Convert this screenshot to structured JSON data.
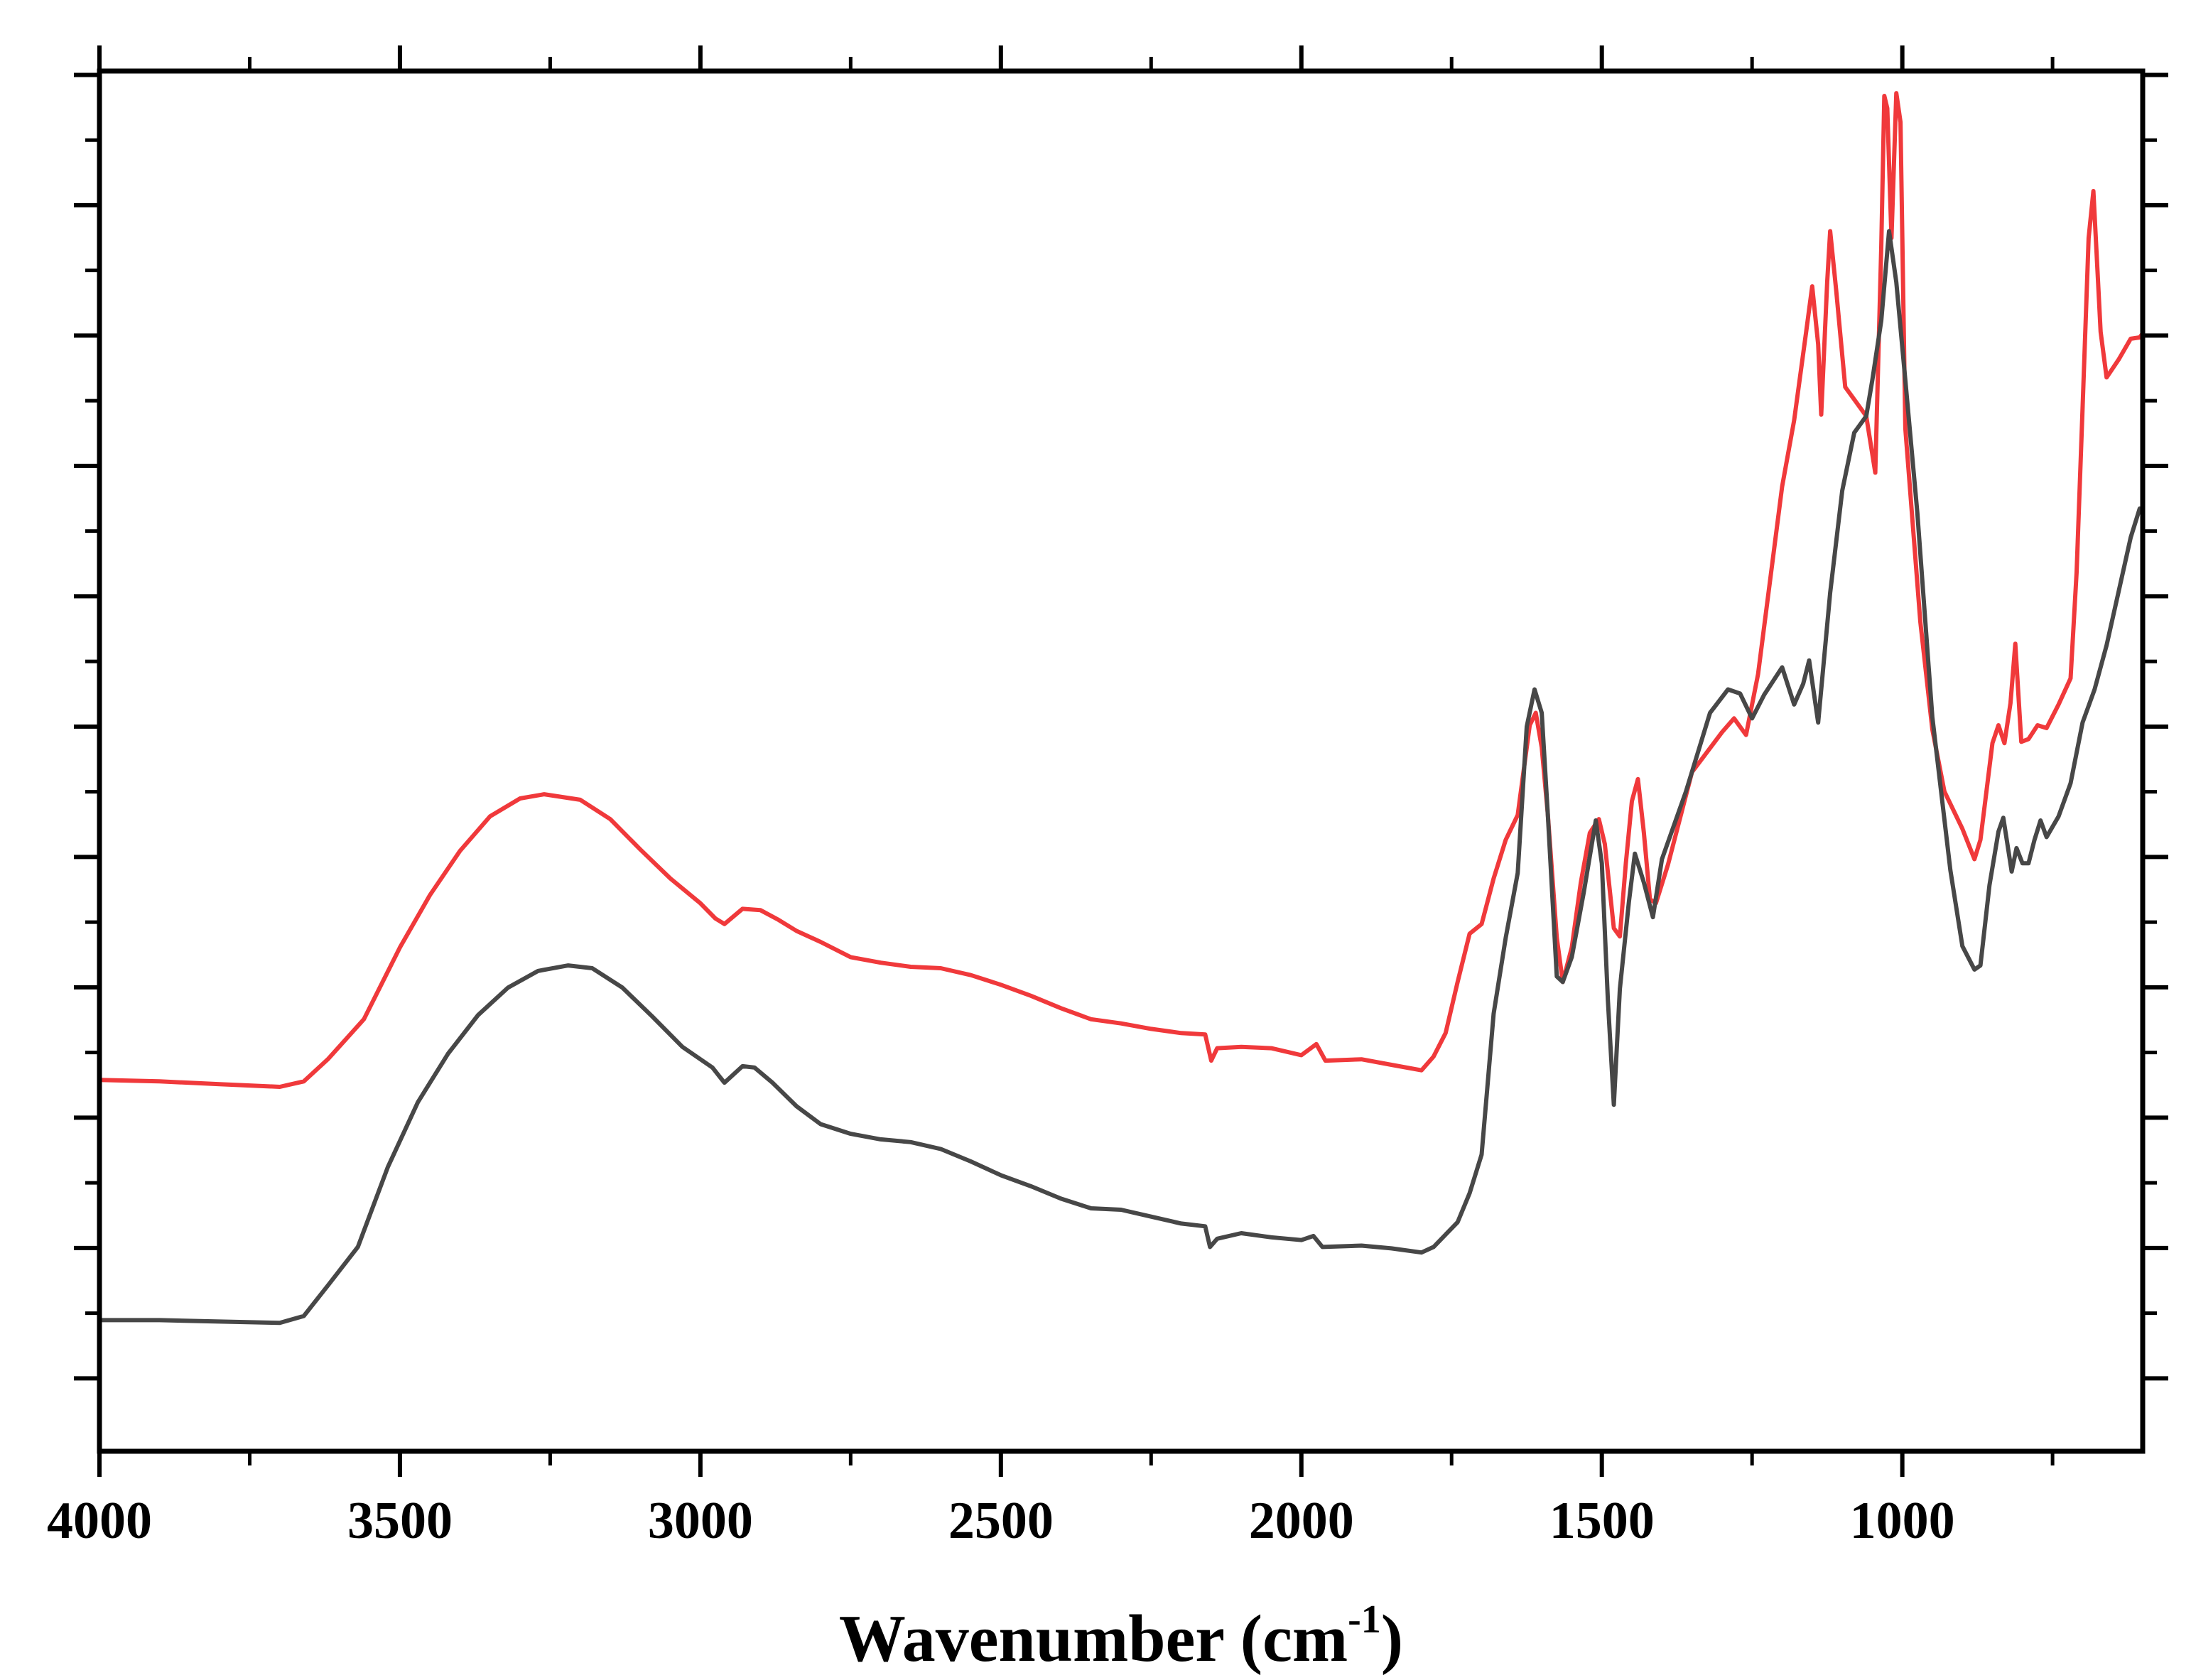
{
  "chart_data": {
    "type": "line",
    "title": "",
    "xlabel": "Wavenumber (cm",
    "xlabel_superscript": "-1",
    "xlabel_suffix": ")",
    "ylabel": "",
    "xlim": [
      4000,
      600
    ],
    "ylim": [
      0,
      100
    ],
    "x_ticks": [
      4000,
      3500,
      3000,
      2500,
      2000,
      1500,
      1000
    ],
    "x_tick_labels": [
      "4000",
      "3500",
      "3000",
      "2500",
      "2000",
      "1500",
      "1000"
    ],
    "y_tick_count": 10,
    "y_tick_labels": [],
    "grid": false,
    "legend": "none",
    "series": [
      {
        "name": "red spectrum",
        "color": "#f0393b",
        "points": [
          [
            4000,
            26.9
          ],
          [
            3900,
            26.8
          ],
          [
            3800,
            26.6
          ],
          [
            3700,
            26.4
          ],
          [
            3660,
            26.8
          ],
          [
            3620,
            28.4
          ],
          [
            3560,
            31.3
          ],
          [
            3500,
            36.5
          ],
          [
            3450,
            40.3
          ],
          [
            3400,
            43.5
          ],
          [
            3350,
            46.0
          ],
          [
            3300,
            47.3
          ],
          [
            3260,
            47.6
          ],
          [
            3200,
            47.2
          ],
          [
            3150,
            45.8
          ],
          [
            3100,
            43.6
          ],
          [
            3050,
            41.5
          ],
          [
            3000,
            39.7
          ],
          [
            2975,
            38.6
          ],
          [
            2960,
            38.2
          ],
          [
            2930,
            39.3
          ],
          [
            2900,
            39.2
          ],
          [
            2870,
            38.5
          ],
          [
            2840,
            37.7
          ],
          [
            2800,
            36.9
          ],
          [
            2750,
            35.8
          ],
          [
            2700,
            35.4
          ],
          [
            2650,
            35.1
          ],
          [
            2600,
            35.0
          ],
          [
            2550,
            34.5
          ],
          [
            2500,
            33.8
          ],
          [
            2450,
            33.0
          ],
          [
            2400,
            32.1
          ],
          [
            2350,
            31.3
          ],
          [
            2300,
            31.0
          ],
          [
            2250,
            30.6
          ],
          [
            2200,
            30.3
          ],
          [
            2160,
            30.2
          ],
          [
            2150,
            28.3
          ],
          [
            2140,
            29.2
          ],
          [
            2100,
            29.3
          ],
          [
            2050,
            29.2
          ],
          [
            2000,
            28.7
          ],
          [
            1975,
            29.5
          ],
          [
            1960,
            28.3
          ],
          [
            1900,
            28.4
          ],
          [
            1850,
            28.0
          ],
          [
            1800,
            27.6
          ],
          [
            1780,
            28.6
          ],
          [
            1760,
            30.3
          ],
          [
            1740,
            34.0
          ],
          [
            1720,
            37.5
          ],
          [
            1700,
            38.2
          ],
          [
            1680,
            41.5
          ],
          [
            1660,
            44.3
          ],
          [
            1640,
            46.1
          ],
          [
            1620,
            52.6
          ],
          [
            1610,
            53.5
          ],
          [
            1600,
            51.0
          ],
          [
            1590,
            46.2
          ],
          [
            1575,
            37.2
          ],
          [
            1565,
            34.0
          ],
          [
            1550,
            36.5
          ],
          [
            1535,
            41.2
          ],
          [
            1520,
            44.8
          ],
          [
            1505,
            45.8
          ],
          [
            1495,
            44.0
          ],
          [
            1480,
            37.9
          ],
          [
            1470,
            37.3
          ],
          [
            1460,
            42.6
          ],
          [
            1450,
            47.1
          ],
          [
            1440,
            48.7
          ],
          [
            1430,
            44.8
          ],
          [
            1420,
            40.0
          ],
          [
            1410,
            39.7
          ],
          [
            1390,
            42.5
          ],
          [
            1350,
            49.2
          ],
          [
            1300,
            52.1
          ],
          [
            1280,
            53.1
          ],
          [
            1260,
            51.9
          ],
          [
            1240,
            56.3
          ],
          [
            1200,
            69.9
          ],
          [
            1180,
            74.7
          ],
          [
            1160,
            81.1
          ],
          [
            1150,
            84.4
          ],
          [
            1140,
            80.2
          ],
          [
            1135,
            75.1
          ],
          [
            1125,
            84.7
          ],
          [
            1120,
            88.4
          ],
          [
            1110,
            84.1
          ],
          [
            1095,
            77.1
          ],
          [
            1080,
            76.2
          ],
          [
            1060,
            75.0
          ],
          [
            1045,
            70.9
          ],
          [
            1035,
            87.2
          ],
          [
            1030,
            98.2
          ],
          [
            1025,
            97.3
          ],
          [
            1018,
            87.9
          ],
          [
            1010,
            98.4
          ],
          [
            1003,
            96.3
          ],
          [
            995,
            74.1
          ],
          [
            970,
            60.1
          ],
          [
            950,
            52.3
          ],
          [
            930,
            47.8
          ],
          [
            900,
            45.1
          ],
          [
            880,
            42.9
          ],
          [
            870,
            44.3
          ],
          [
            850,
            51.3
          ],
          [
            840,
            52.6
          ],
          [
            830,
            51.3
          ],
          [
            820,
            54.2
          ],
          [
            812,
            58.5
          ],
          [
            802,
            51.4
          ],
          [
            790,
            51.6
          ],
          [
            775,
            52.6
          ],
          [
            760,
            52.4
          ],
          [
            740,
            54.1
          ],
          [
            720,
            56.0
          ],
          [
            710,
            63.7
          ],
          [
            700,
            75.6
          ],
          [
            690,
            87.9
          ],
          [
            682,
            91.3
          ],
          [
            670,
            81.1
          ],
          [
            660,
            77.8
          ],
          [
            640,
            79.1
          ],
          [
            620,
            80.6
          ],
          [
            605,
            80.7
          ],
          [
            600,
            81.0
          ]
        ]
      },
      {
        "name": "dark gray spectrum",
        "color": "#474747",
        "points": [
          [
            4000,
            9.5
          ],
          [
            3900,
            9.5
          ],
          [
            3800,
            9.4
          ],
          [
            3700,
            9.3
          ],
          [
            3660,
            9.8
          ],
          [
            3620,
            12.0
          ],
          [
            3570,
            14.8
          ],
          [
            3520,
            20.6
          ],
          [
            3470,
            25.3
          ],
          [
            3420,
            28.8
          ],
          [
            3370,
            31.6
          ],
          [
            3320,
            33.6
          ],
          [
            3270,
            34.8
          ],
          [
            3220,
            35.2
          ],
          [
            3180,
            35.0
          ],
          [
            3130,
            33.6
          ],
          [
            3080,
            31.5
          ],
          [
            3030,
            29.3
          ],
          [
            2980,
            27.8
          ],
          [
            2960,
            26.7
          ],
          [
            2930,
            27.9
          ],
          [
            2910,
            27.8
          ],
          [
            2880,
            26.7
          ],
          [
            2840,
            25.0
          ],
          [
            2800,
            23.7
          ],
          [
            2750,
            23.0
          ],
          [
            2700,
            22.6
          ],
          [
            2650,
            22.4
          ],
          [
            2600,
            21.9
          ],
          [
            2550,
            21.0
          ],
          [
            2500,
            20.0
          ],
          [
            2450,
            19.2
          ],
          [
            2400,
            18.3
          ],
          [
            2350,
            17.6
          ],
          [
            2300,
            17.5
          ],
          [
            2250,
            17.0
          ],
          [
            2200,
            16.5
          ],
          [
            2160,
            16.3
          ],
          [
            2152,
            14.8
          ],
          [
            2140,
            15.4
          ],
          [
            2100,
            15.8
          ],
          [
            2050,
            15.5
          ],
          [
            2000,
            15.3
          ],
          [
            1980,
            15.6
          ],
          [
            1965,
            14.8
          ],
          [
            1900,
            14.9
          ],
          [
            1850,
            14.7
          ],
          [
            1800,
            14.4
          ],
          [
            1780,
            14.8
          ],
          [
            1740,
            16.6
          ],
          [
            1720,
            18.7
          ],
          [
            1700,
            21.5
          ],
          [
            1680,
            31.7
          ],
          [
            1660,
            37.2
          ],
          [
            1640,
            41.9
          ],
          [
            1625,
            52.5
          ],
          [
            1612,
            55.2
          ],
          [
            1600,
            53.5
          ],
          [
            1590,
            46.2
          ],
          [
            1575,
            34.4
          ],
          [
            1565,
            34.0
          ],
          [
            1550,
            35.8
          ],
          [
            1530,
            40.5
          ],
          [
            1510,
            45.7
          ],
          [
            1500,
            42.6
          ],
          [
            1490,
            32.7
          ],
          [
            1480,
            25.1
          ],
          [
            1470,
            33.5
          ],
          [
            1455,
            39.8
          ],
          [
            1445,
            43.3
          ],
          [
            1430,
            41.2
          ],
          [
            1415,
            38.7
          ],
          [
            1400,
            42.9
          ],
          [
            1360,
            47.8
          ],
          [
            1320,
            53.5
          ],
          [
            1290,
            55.2
          ],
          [
            1270,
            54.9
          ],
          [
            1250,
            53.1
          ],
          [
            1230,
            54.8
          ],
          [
            1200,
            56.8
          ],
          [
            1180,
            54.1
          ],
          [
            1165,
            55.6
          ],
          [
            1155,
            57.3
          ],
          [
            1140,
            52.8
          ],
          [
            1120,
            62.2
          ],
          [
            1100,
            69.6
          ],
          [
            1080,
            73.8
          ],
          [
            1060,
            75.0
          ],
          [
            1050,
            77.6
          ],
          [
            1035,
            81.9
          ],
          [
            1022,
            88.4
          ],
          [
            1010,
            84.7
          ],
          [
            995,
            77.6
          ],
          [
            975,
            68.0
          ],
          [
            950,
            53.2
          ],
          [
            920,
            42.1
          ],
          [
            900,
            36.6
          ],
          [
            880,
            34.9
          ],
          [
            870,
            35.2
          ],
          [
            855,
            41.0
          ],
          [
            840,
            44.9
          ],
          [
            832,
            45.9
          ],
          [
            818,
            42.0
          ],
          [
            810,
            43.7
          ],
          [
            800,
            42.6
          ],
          [
            790,
            42.6
          ],
          [
            780,
            44.3
          ],
          [
            770,
            45.7
          ],
          [
            760,
            44.5
          ],
          [
            740,
            46.0
          ],
          [
            720,
            48.4
          ],
          [
            700,
            52.8
          ],
          [
            680,
            55.2
          ],
          [
            660,
            58.4
          ],
          [
            640,
            62.3
          ],
          [
            620,
            66.2
          ],
          [
            605,
            68.3
          ],
          [
            600,
            68.0
          ]
        ]
      }
    ]
  }
}
